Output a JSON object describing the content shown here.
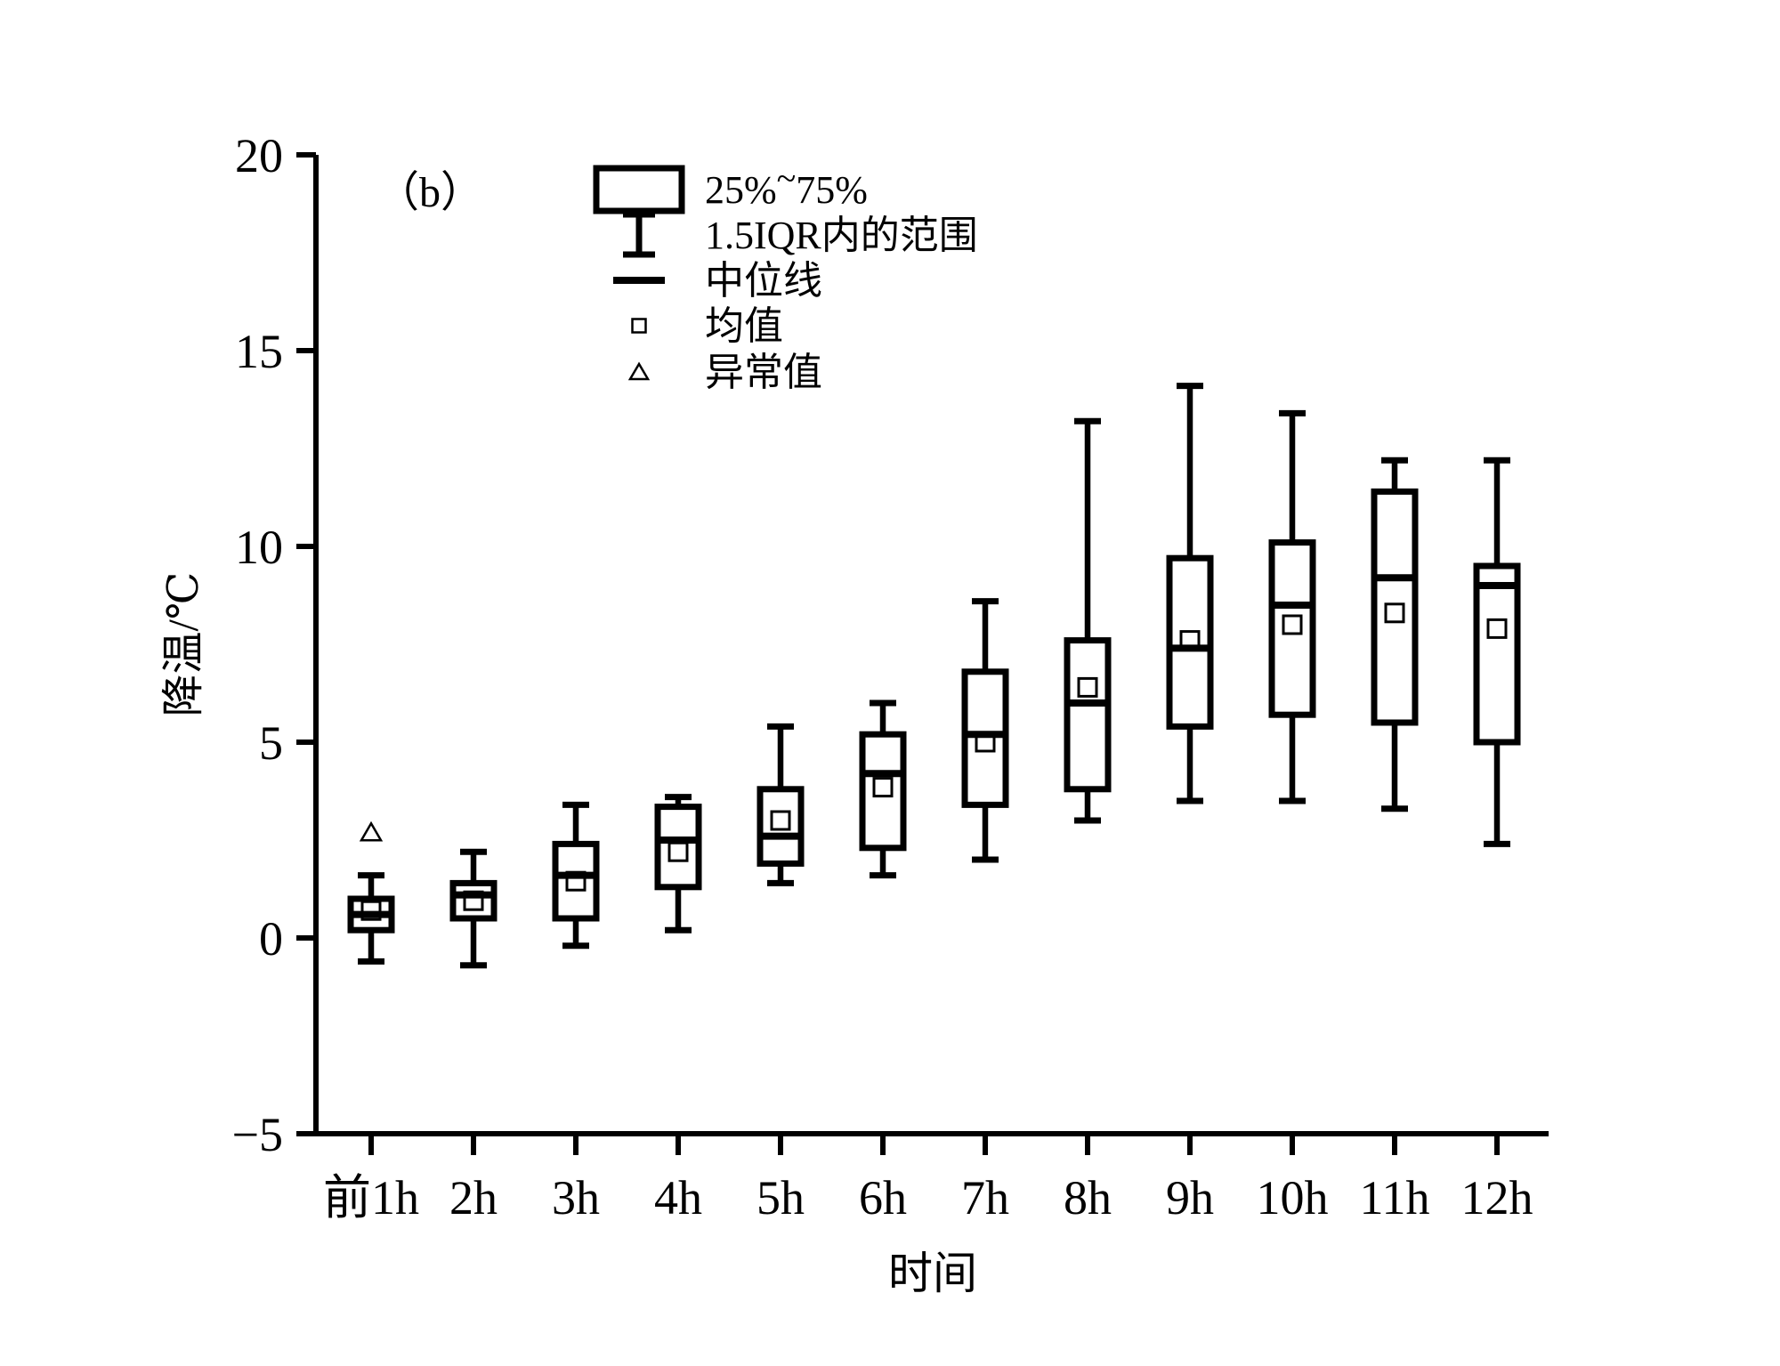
{
  "figure": {
    "panel_label": "（b）",
    "background_color": "#ffffff",
    "ink_color": "#000000"
  },
  "chart_data": {
    "type": "box",
    "title": "",
    "xlabel": "时间",
    "ylabel": "降温/℃",
    "ylim": [
      -5,
      20
    ],
    "grid": false,
    "frame": "L-shaped (left and bottom spines only)",
    "yticks": [
      {
        "value": 20,
        "label": "20"
      },
      {
        "value": 15,
        "label": "15"
      },
      {
        "value": 10,
        "label": "10"
      },
      {
        "value": 5,
        "label": "5"
      },
      {
        "value": 0,
        "label": "0"
      },
      {
        "value": -5,
        "label": "−5"
      }
    ],
    "categories": [
      "前1h",
      "2h",
      "3h",
      "4h",
      "5h",
      "6h",
      "7h",
      "8h",
      "9h",
      "10h",
      "11h",
      "12h"
    ],
    "series": [
      {
        "category": "前1h",
        "whisker_low": -0.6,
        "q1": 0.2,
        "median": 0.6,
        "mean": 0.7,
        "q3": 1.0,
        "whisker_high": 1.6,
        "outliers": [
          2.7
        ]
      },
      {
        "category": "2h",
        "whisker_low": -0.7,
        "q1": 0.5,
        "median": 1.1,
        "mean": 0.95,
        "q3": 1.4,
        "whisker_high": 2.2,
        "outliers": []
      },
      {
        "category": "3h",
        "whisker_low": -0.2,
        "q1": 0.5,
        "median": 1.6,
        "mean": 1.45,
        "q3": 2.4,
        "whisker_high": 3.4,
        "outliers": []
      },
      {
        "category": "4h",
        "whisker_low": 0.2,
        "q1": 1.3,
        "median": 2.5,
        "mean": 2.2,
        "q3": 3.35,
        "whisker_high": 3.6,
        "outliers": []
      },
      {
        "category": "5h",
        "whisker_low": 1.4,
        "q1": 1.9,
        "median": 2.6,
        "mean": 3.0,
        "q3": 3.8,
        "whisker_high": 5.4,
        "outliers": []
      },
      {
        "category": "6h",
        "whisker_low": 1.6,
        "q1": 2.3,
        "median": 4.2,
        "mean": 3.85,
        "q3": 5.2,
        "whisker_high": 6.0,
        "outliers": []
      },
      {
        "category": "7h",
        "whisker_low": 2.0,
        "q1": 3.4,
        "median": 5.2,
        "mean": 5.0,
        "q3": 6.8,
        "whisker_high": 8.6,
        "outliers": []
      },
      {
        "category": "8h",
        "whisker_low": 3.0,
        "q1": 3.8,
        "median": 6.0,
        "mean": 6.4,
        "q3": 7.6,
        "whisker_high": 13.2,
        "outliers": []
      },
      {
        "category": "9h",
        "whisker_low": 3.5,
        "q1": 5.4,
        "median": 7.4,
        "mean": 7.6,
        "q3": 9.7,
        "whisker_high": 14.1,
        "outliers": []
      },
      {
        "category": "10h",
        "whisker_low": 3.5,
        "q1": 5.7,
        "median": 8.5,
        "mean": 8.0,
        "q3": 10.1,
        "whisker_high": 13.4,
        "outliers": []
      },
      {
        "category": "11h",
        "whisker_low": 3.3,
        "q1": 5.5,
        "median": 9.2,
        "mean": 8.3,
        "q3": 11.4,
        "whisker_high": 12.2,
        "outliers": []
      },
      {
        "category": "12h",
        "whisker_low": 2.4,
        "q1": 5.0,
        "median": 9.0,
        "mean": 7.9,
        "q3": 9.5,
        "whisker_high": 12.2,
        "outliers": []
      }
    ],
    "legend": {
      "position": "top-center",
      "items": [
        {
          "symbol": "box",
          "label": "25%~75%"
        },
        {
          "symbol": "whisker",
          "label": "1.5IQR内的范围"
        },
        {
          "symbol": "median-line",
          "label": "中位线"
        },
        {
          "symbol": "mean-square",
          "label": "均值"
        },
        {
          "symbol": "outlier-triangle",
          "label": "异常值"
        }
      ]
    }
  }
}
